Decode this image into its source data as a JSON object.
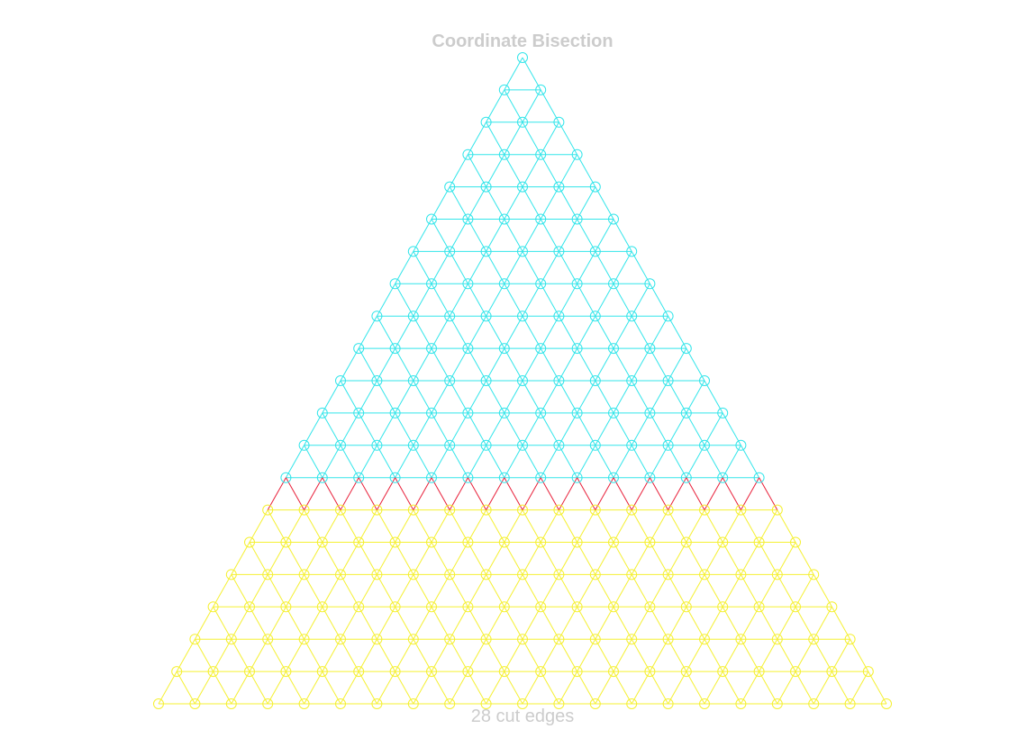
{
  "title": "Coordinate Bisection",
  "caption": "28 cut edges",
  "mesh": {
    "rows": 20,
    "cut_after_row": 13,
    "partition_a_color": "#33e5ea",
    "partition_b_color": "#f5f032",
    "cut_edge_color": "#e8203a",
    "text_color": "#cccccc"
  }
}
